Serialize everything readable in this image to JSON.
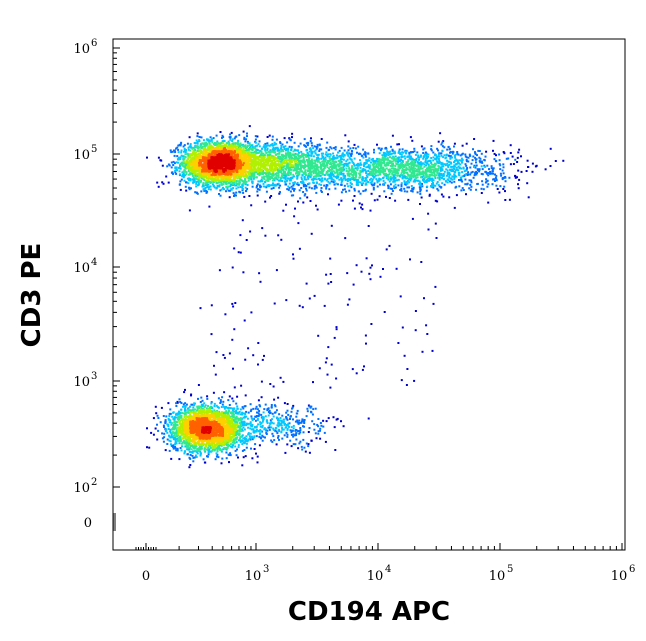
{
  "chart_data": {
    "type": "scatter",
    "subtype": "flow-cytometry-density-dot-plot",
    "xlabel": "CD194 APC",
    "ylabel": "CD3 PE",
    "xscale": "biexponential",
    "yscale": "biexponential",
    "xlim": [
      -20,
      1000000
    ],
    "ylim": [
      -20,
      1000000
    ],
    "x_ticks": [
      {
        "value": 0,
        "label": "0",
        "exp": ""
      },
      {
        "value": 1000,
        "label": "10",
        "exp": "3"
      },
      {
        "value": 10000,
        "label": "10",
        "exp": "4"
      },
      {
        "value": 100000,
        "label": "10",
        "exp": "5"
      },
      {
        "value": 1000000,
        "label": "10",
        "exp": "6"
      }
    ],
    "y_ticks": [
      {
        "value": 0,
        "label": "0",
        "exp": ""
      },
      {
        "value": 100,
        "label": "10",
        "exp": "2"
      },
      {
        "value": 1000,
        "label": "10",
        "exp": "3"
      },
      {
        "value": 10000,
        "label": "10",
        "exp": "4"
      },
      {
        "value": 100000,
        "label": "10",
        "exp": "5"
      },
      {
        "value": 1000000,
        "label": "10",
        "exp": "6"
      }
    ],
    "grid": false,
    "legend": "none",
    "density_colormap": [
      "#0000cc",
      "#0070ff",
      "#00c8ff",
      "#30e890",
      "#b0f000",
      "#ffd000",
      "#ff6000",
      "#e00000"
    ],
    "populations": [
      {
        "cx": 450,
        "cy": 85000,
        "sx_log": 0.17,
        "sy_log": 0.1,
        "n": 2600,
        "peak": "#e00000"
      },
      {
        "cx": 1500,
        "cy": 80000,
        "sx_log": 0.3,
        "sy_log": 0.1,
        "n": 1500,
        "peak": "#00c8ff"
      },
      {
        "cx": 15000,
        "cy": 75000,
        "sx_log": 0.45,
        "sy_log": 0.1,
        "n": 1700,
        "peak": "#30e890"
      },
      {
        "cx": 350,
        "cy": 360,
        "sx_log": 0.17,
        "sy_log": 0.11,
        "n": 2400,
        "peak": "#b0f000"
      },
      {
        "cx": 1400,
        "cy": 380,
        "sx_log": 0.25,
        "sy_log": 0.1,
        "n": 400,
        "peak": "#0070ff"
      }
    ],
    "sparse_events": {
      "x_range": [
        300,
        30000
      ],
      "y_range": [
        800,
        40000
      ],
      "n": 140
    }
  }
}
